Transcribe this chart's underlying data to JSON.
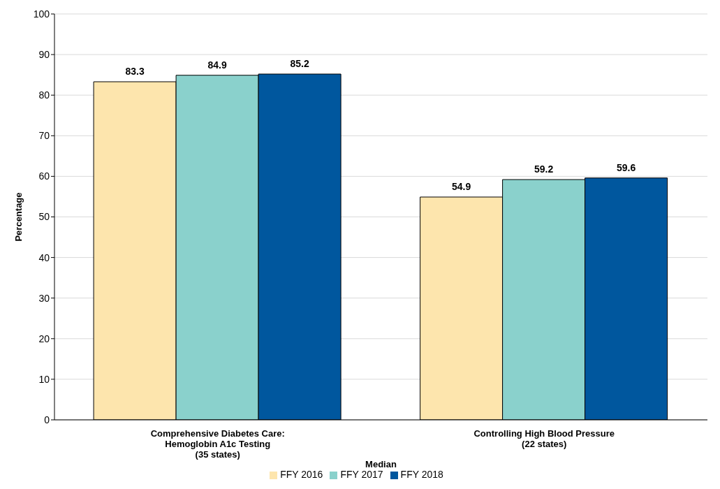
{
  "chart_data": {
    "type": "bar",
    "xlabel": "Median",
    "ylabel": "Percentage",
    "categories": [
      "Comprehensive Diabetes Care:\nHemoglobin A1c Testing\n(35 states)",
      "Controlling High Blood Pressure\n(22 states)"
    ],
    "series": [
      {
        "name": "FFY 2016",
        "color": "#fde5ad",
        "values": [
          83.3,
          54.9
        ]
      },
      {
        "name": "FFY 2017",
        "color": "#8ad1cc",
        "values": [
          84.9,
          59.2
        ]
      },
      {
        "name": "FFY 2018",
        "color": "#00579e",
        "values": [
          85.2,
          59.6
        ]
      }
    ],
    "ylim": [
      0,
      100
    ],
    "yticks": [
      0,
      10,
      20,
      30,
      40,
      50,
      60,
      70,
      80,
      90,
      100
    ],
    "grid": "y",
    "legend": "bottom",
    "data_labels": true
  }
}
